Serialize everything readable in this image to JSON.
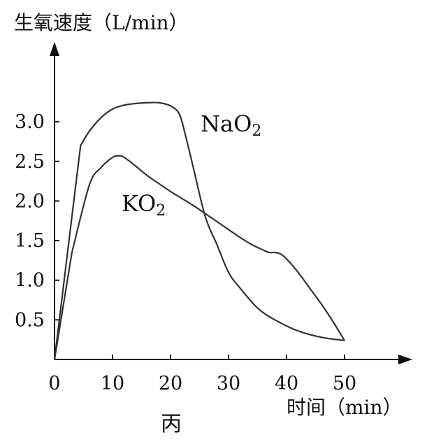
{
  "chart_data": {
    "type": "line",
    "ylabel": "生氧速度（L/min）",
    "xlabel": "时间（min）",
    "caption": "丙",
    "xlim": [
      0,
      55
    ],
    "ylim": [
      0,
      3.6
    ],
    "x_ticks": [
      "0",
      "10",
      "20",
      "30",
      "40",
      "50"
    ],
    "x_tick_values": [
      0,
      10,
      20,
      30,
      40,
      50
    ],
    "y_ticks": [
      "0.5",
      "1.0",
      "1.5",
      "2.0",
      "2.5",
      "3.0"
    ],
    "y_tick_values": [
      0.5,
      1.0,
      1.5,
      2.0,
      2.5,
      3.0
    ],
    "grid": false,
    "series": [
      {
        "name": "NaO",
        "name_sub": "2",
        "x": [
          0,
          4.5,
          6,
          8,
          10,
          12,
          14,
          16,
          18,
          20,
          21.5,
          22.5,
          24,
          26,
          28,
          30,
          32,
          35,
          38,
          42,
          46,
          50
        ],
        "y": [
          0,
          2.7,
          2.88,
          3.05,
          3.16,
          3.21,
          3.23,
          3.24,
          3.24,
          3.2,
          3.1,
          2.85,
          2.4,
          1.8,
          1.45,
          1.1,
          0.9,
          0.65,
          0.5,
          0.36,
          0.28,
          0.24
        ]
      },
      {
        "name": "KO",
        "name_sub": "2",
        "x": [
          0,
          3,
          6,
          8,
          10,
          11,
          12,
          14,
          16,
          18,
          20,
          22,
          24,
          26,
          28,
          30,
          32,
          34,
          36,
          37,
          38,
          39,
          40,
          42,
          44,
          46,
          48,
          50
        ],
        "y": [
          0,
          1.35,
          2.2,
          2.42,
          2.55,
          2.57,
          2.55,
          2.44,
          2.32,
          2.22,
          2.12,
          2.03,
          1.94,
          1.84,
          1.74,
          1.64,
          1.54,
          1.45,
          1.38,
          1.35,
          1.35,
          1.33,
          1.27,
          1.1,
          0.9,
          0.7,
          0.48,
          0.24
        ]
      }
    ]
  }
}
